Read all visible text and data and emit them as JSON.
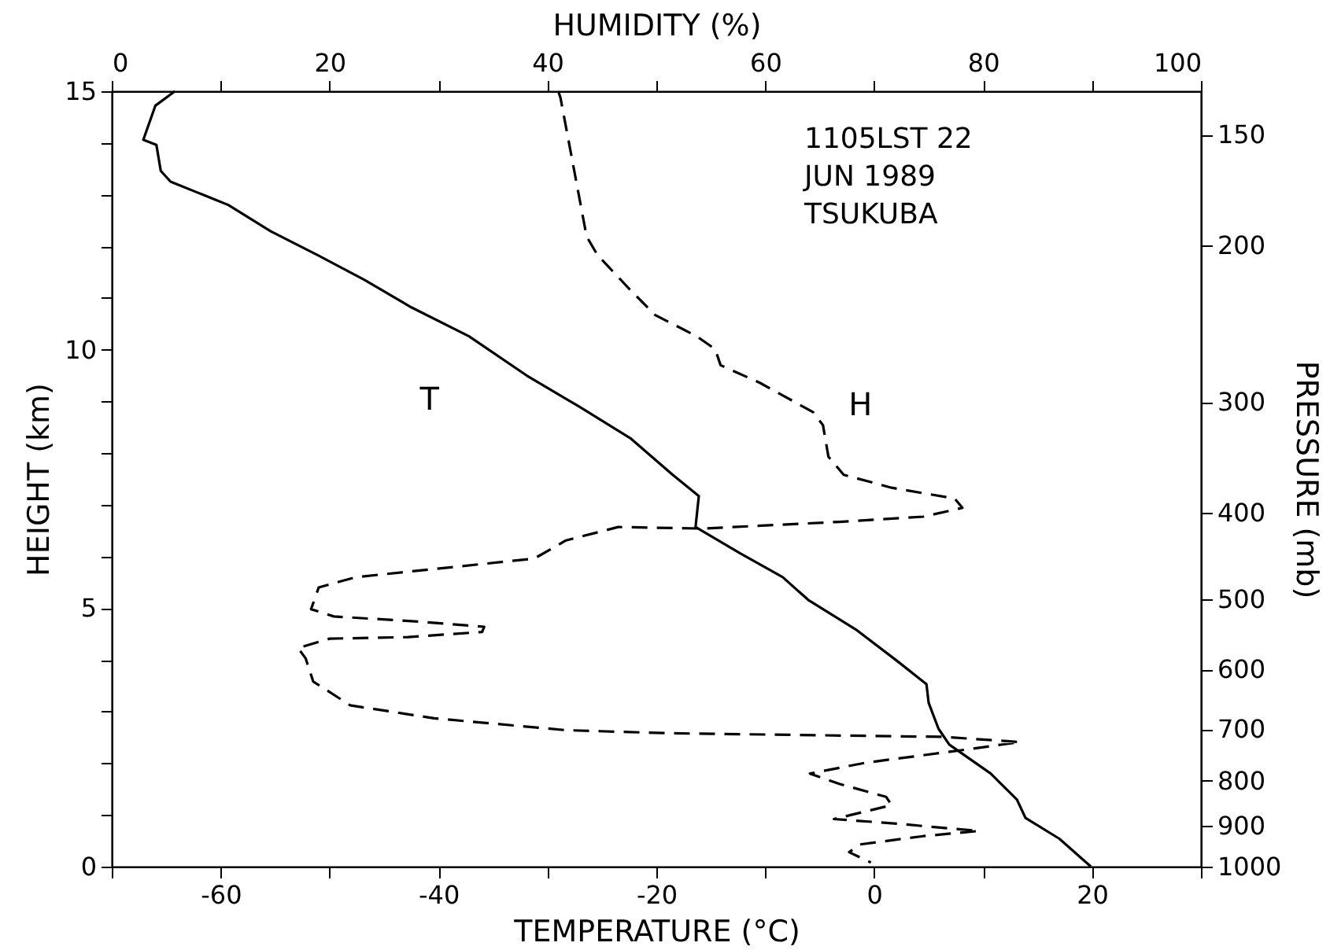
{
  "chart_data": {
    "type": "line",
    "xlabel": "TEMPERATURE (°C)",
    "x2label": "HUMIDITY (%)",
    "ylabel": "HEIGHT (km)",
    "y2label": "PRESSURE (mb)",
    "xlim": [
      -70,
      30
    ],
    "xticks": [
      {
        "value": -70,
        "label": null
      },
      -60,
      {
        "value": -50,
        "label": null
      },
      -40,
      {
        "value": -30,
        "label": null
      },
      -20,
      {
        "value": -10,
        "label": null
      },
      0,
      {
        "value": 10,
        "label": null
      },
      20,
      {
        "value": 30,
        "label": null
      }
    ],
    "x2lim": [
      0,
      100
    ],
    "x2ticks": [
      0,
      {
        "value": 10,
        "label": null
      },
      20,
      {
        "value": 30,
        "label": null
      },
      40,
      {
        "value": 50,
        "label": null
      },
      60,
      {
        "value": 70,
        "label": null
      },
      80,
      {
        "value": 90,
        "label": null
      },
      100
    ],
    "ylim": [
      0,
      15
    ],
    "yticks": [
      0,
      {
        "value": 1,
        "label": null
      },
      {
        "value": 2,
        "label": null
      },
      {
        "value": 3,
        "label": null
      },
      {
        "value": 4,
        "label": null
      },
      5,
      {
        "value": 6,
        "label": null
      },
      {
        "value": 7,
        "label": null
      },
      {
        "value": 8,
        "label": null
      },
      {
        "value": 9,
        "label": null
      },
      10,
      {
        "value": 11,
        "label": null
      },
      {
        "value": 12,
        "label": null
      },
      {
        "value": 13,
        "label": null
      },
      {
        "value": 14,
        "label": null
      },
      15
    ],
    "y2lim": [
      1000,
      134
    ],
    "y2ticks": [
      1000,
      900,
      800,
      700,
      600,
      500,
      400,
      300,
      200,
      150
    ],
    "log": "y2",
    "annotations": [
      "1105LST 22",
      "JUN 1989",
      "TSUKUBA"
    ],
    "grid": false,
    "series": [
      {
        "name": "T",
        "color": "#000000",
        "line_style": "solid",
        "x": [
          -64.2,
          -66.0,
          -67.1,
          -65.9,
          -65.5,
          -64.6,
          -59.3,
          -55.4,
          -51.1,
          -46.8,
          -42.5,
          -37.2,
          -31.9,
          -27.1,
          -22.4,
          -18.5,
          -16.1,
          -16.4,
          -12.3,
          -8.4,
          -6.0,
          -1.7,
          2.1,
          4.8,
          5.0,
          5.9,
          6.9,
          10.7,
          13.1,
          13.9,
          17.0,
          19.9
        ],
        "values": [
          15,
          14.72,
          14.06,
          13.96,
          13.46,
          13.25,
          12.8,
          12.29,
          11.83,
          11.35,
          10.82,
          10.26,
          9.5,
          8.9,
          8.29,
          7.58,
          7.17,
          6.57,
          6.06,
          5.6,
          5.15,
          4.59,
          3.98,
          3.53,
          3.17,
          2.67,
          2.36,
          1.8,
          1.3,
          0.94,
          0.54,
          0.0
        ]
      },
      {
        "name": "H",
        "color": "#000000",
        "line_style": "dashed",
        "axis": "x2",
        "x": [
          41.0,
          41.2,
          43.6,
          44.6,
          47.5,
          49.9,
          53.7,
          55.4,
          55.9,
          59.5,
          64.4,
          65.3,
          65.8,
          67.2,
          71.6,
          77.4,
          78.1,
          74.5,
          66.8,
          57.1,
          54.2,
          46.5,
          41.7,
          38.8,
          32.0,
          22.4,
          19.0,
          18.3,
          20.4,
          28.2,
          34.2,
          34.0,
          27.2,
          20.0,
          17.1,
          17.8,
          18.5,
          21.9,
          29.6,
          41.7,
          51.3,
          76.4,
          83.4,
          78.3,
          69.2,
          64.1,
          66.8,
          71.1,
          71.6,
          66.3,
          71.6,
          79.6,
          74.5,
          68.7,
          67.7,
          69.7
        ],
        "values": [
          15,
          14.87,
          12.19,
          11.83,
          11.18,
          10.67,
          10.26,
          10.01,
          9.7,
          9.36,
          8.79,
          8.54,
          7.93,
          7.58,
          7.33,
          7.12,
          6.94,
          6.77,
          6.67,
          6.57,
          6.54,
          6.57,
          6.31,
          5.96,
          5.81,
          5.6,
          5.4,
          4.98,
          4.84,
          4.74,
          4.64,
          4.54,
          4.44,
          4.41,
          4.23,
          4.03,
          3.58,
          3.12,
          2.87,
          2.64,
          2.58,
          2.51,
          2.41,
          2.26,
          2.01,
          1.8,
          1.6,
          1.35,
          1.19,
          0.92,
          0.84,
          0.69,
          0.59,
          0.43,
          0.28,
          0.08
        ]
      }
    ]
  }
}
